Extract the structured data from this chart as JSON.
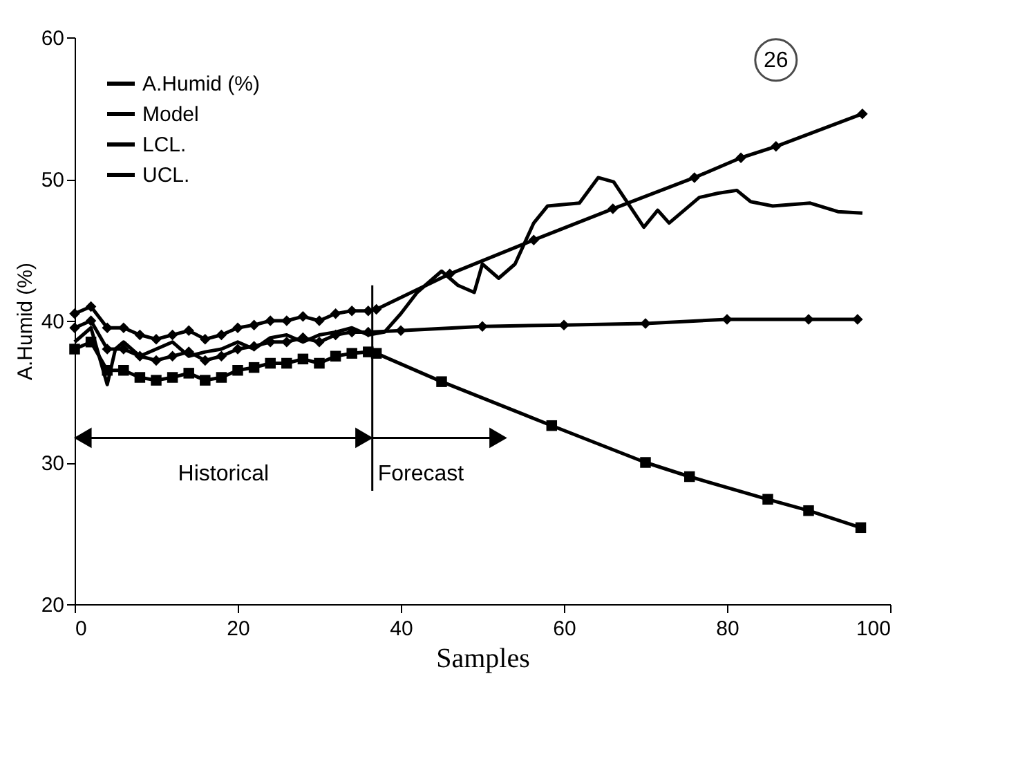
{
  "chart_data": {
    "type": "line",
    "xlabel": "Samples",
    "ylabel": "A.Humid (%)",
    "xlim": [
      0,
      100
    ],
    "xticks": [
      0,
      20,
      40,
      60,
      80,
      100
    ],
    "ylim": [
      20,
      60
    ],
    "yticks": [
      20,
      30,
      40,
      50,
      60
    ],
    "grid": false,
    "legend": "top left",
    "line_style": "solid",
    "series": [
      {
        "name": "A.Humid (%)",
        "color": "#000000",
        "marker": "none",
        "x": [
          0,
          2,
          4,
          5,
          6,
          8,
          10,
          12,
          14,
          16,
          18,
          20,
          22,
          24,
          26,
          28,
          30,
          32,
          34,
          36,
          38,
          40,
          42,
          44,
          45,
          47,
          49,
          50,
          52,
          54,
          56.3,
          58,
          61.9,
          64.2,
          66.1,
          69.8,
          71.5,
          72.9,
          76.6,
          78.9,
          81.2,
          82.9,
          85.6,
          90.2,
          93.6,
          96.6
        ],
        "values": [
          38.5,
          39.5,
          35.5,
          38,
          38.5,
          37.5,
          38,
          38.5,
          37.5,
          37.8,
          38,
          38.5,
          38,
          38.8,
          39,
          38.5,
          39,
          39.2,
          39.5,
          39,
          39.2,
          40.5,
          42,
          43,
          43.5,
          42.5,
          42,
          44,
          43,
          44,
          46.9,
          48.1,
          48.3,
          50.1,
          49.8,
          46.6,
          47.8,
          46.9,
          48.7,
          49,
          49.2,
          48.4,
          48.1,
          48.3,
          47.7,
          47.6
        ]
      },
      {
        "name": "Model",
        "color": "#000000",
        "marker": "diamond",
        "x": [
          0,
          2,
          4,
          6,
          8,
          10,
          12,
          14,
          16,
          18,
          20,
          22,
          24,
          26,
          28,
          30,
          32,
          34,
          36,
          40,
          50,
          60,
          70,
          80,
          90,
          96
        ],
        "values": [
          39.5,
          40,
          38,
          38,
          37.5,
          37.2,
          37.5,
          37.8,
          37.2,
          37.5,
          38,
          38.2,
          38.5,
          38.5,
          38.8,
          38.5,
          39,
          39.2,
          39.2,
          39.3,
          39.6,
          39.7,
          39.8,
          40.1,
          40.1,
          40.1
        ]
      },
      {
        "name": "LCL.",
        "color": "#000000",
        "marker": "square",
        "x": [
          0,
          2,
          4,
          6,
          8,
          10,
          12,
          14,
          16,
          18,
          20,
          22,
          24,
          26,
          28,
          30,
          32,
          34,
          36,
          37,
          45,
          58.5,
          70,
          75.4,
          85,
          90,
          96.4
        ],
        "values": [
          38,
          38.5,
          36.5,
          36.5,
          36,
          35.8,
          36,
          36.3,
          35.8,
          36,
          36.5,
          36.7,
          37,
          37,
          37.3,
          37,
          37.5,
          37.7,
          37.8,
          37.7,
          35.7,
          32.6,
          30,
          29,
          27.4,
          26.6,
          25.4
        ]
      },
      {
        "name": "UCL.",
        "color": "#000000",
        "marker": "diamond",
        "x": [
          0,
          2,
          4,
          6,
          8,
          10,
          12,
          14,
          16,
          18,
          20,
          22,
          24,
          26,
          28,
          30,
          32,
          34,
          36,
          37,
          46,
          56.3,
          66,
          76,
          81.7,
          86,
          96.6
        ],
        "values": [
          40.5,
          41,
          39.5,
          39.5,
          39,
          38.7,
          39,
          39.3,
          38.7,
          39,
          39.5,
          39.7,
          40,
          40,
          40.3,
          40,
          40.5,
          40.7,
          40.7,
          40.8,
          43.3,
          45.7,
          47.9,
          50.1,
          51.5,
          52.3,
          54.6
        ]
      }
    ],
    "ref_lines": [
      {
        "axis": "x",
        "value": 36.5
      }
    ],
    "annotations": [
      "Historical",
      "Forecast",
      "26"
    ]
  }
}
